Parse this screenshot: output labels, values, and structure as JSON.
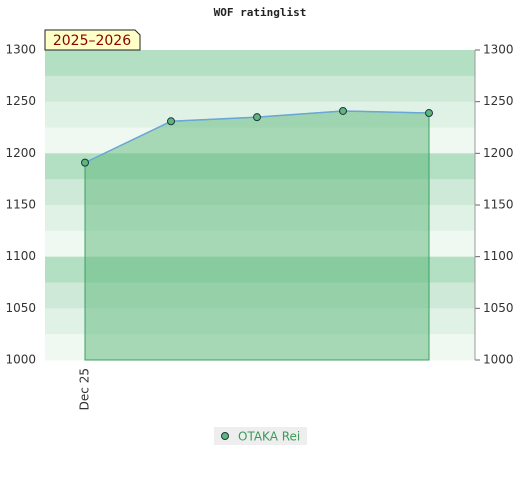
{
  "chart_data": {
    "type": "line",
    "title": "WOF ratinglist",
    "annotation": "2025–2026",
    "categories": [
      "Dec 25",
      null,
      null,
      null,
      null
    ],
    "series": [
      {
        "name": "OTAKA Rei",
        "color": "#5cb87a",
        "line_color": "#6aa6d6",
        "values": [
          1191,
          1231,
          1235,
          1241,
          1239
        ]
      }
    ],
    "ylim": [
      1000,
      1300
    ],
    "yticks": [
      1000,
      1050,
      1100,
      1150,
      1200,
      1250,
      1300
    ],
    "legend": "bottom"
  }
}
